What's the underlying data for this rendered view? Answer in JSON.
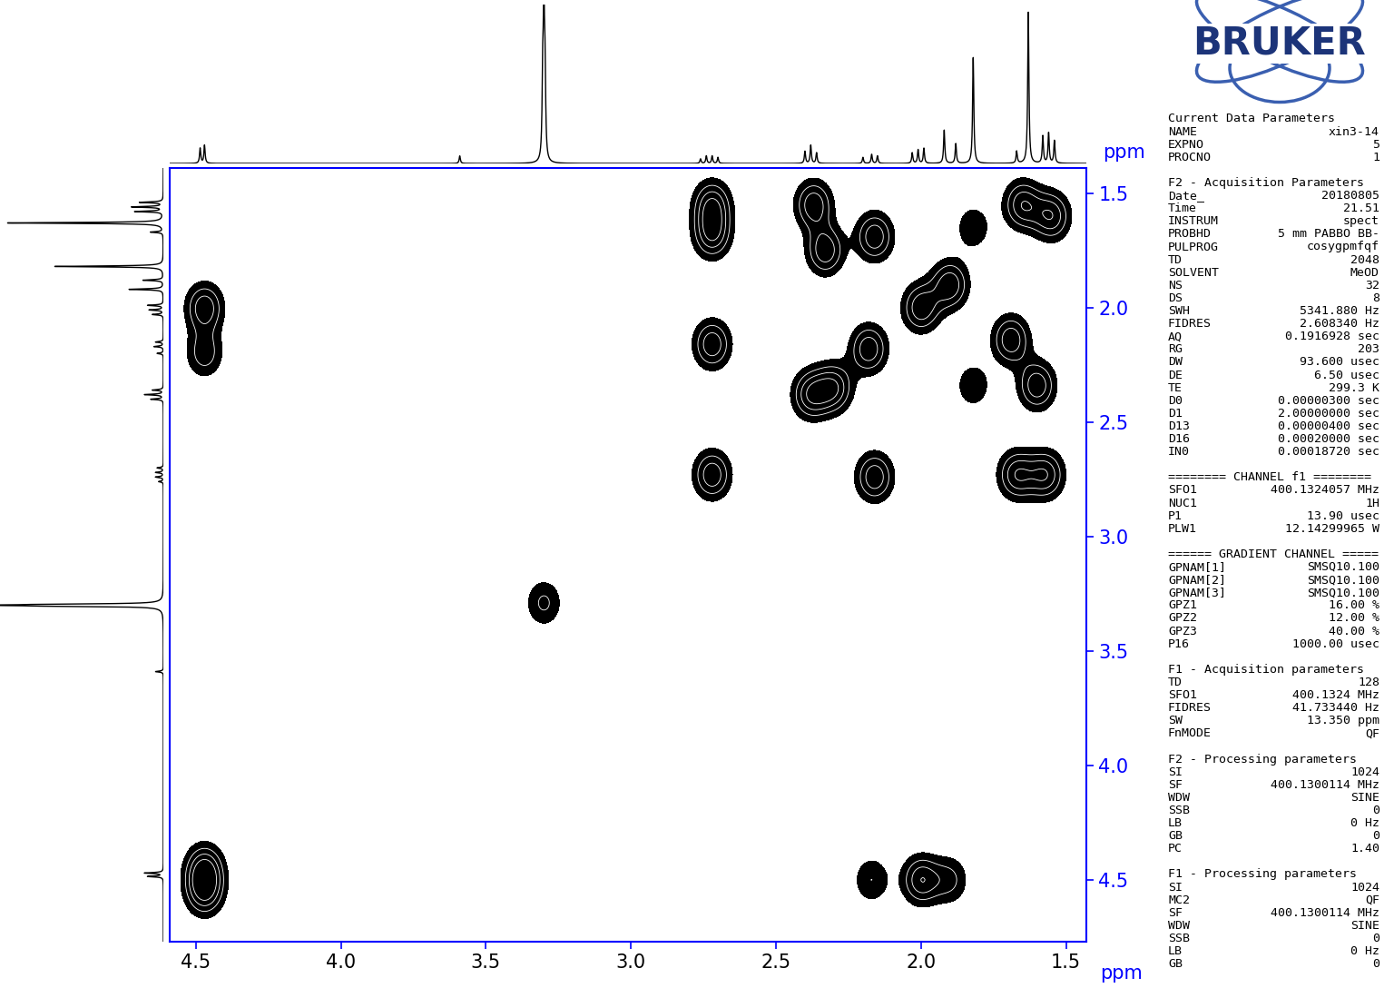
{
  "chart_data": {
    "type": "contour",
    "x_label": "ppm",
    "y_label": "ppm",
    "projection_label": "ppm",
    "xlim": [
      4.59,
      1.43
    ],
    "ylim": [
      4.77,
      1.39
    ],
    "xticks": [
      4.5,
      4.0,
      3.5,
      3.0,
      2.5,
      2.0,
      1.5
    ],
    "yticks": [
      1.5,
      2.0,
      2.5,
      3.0,
      3.5,
      4.0,
      4.5
    ],
    "color": "#000000",
    "axis_color": "#0000ff",
    "cross_peaks": {
      "x": [
        4.47,
        4.47,
        4.47,
        4.47,
        2.72,
        2.72,
        2.72,
        2.72,
        2.37,
        2.33,
        2.38,
        2.3,
        2.16,
        2.18,
        2.16,
        2.0,
        1.9,
        1.82,
        1.82,
        1.65,
        1.55,
        1.69,
        1.6,
        1.67,
        1.57,
        2.0,
        2.17,
        1.9,
        3.3
      ],
      "y": [
        2.0,
        2.2,
        4.45,
        4.55,
        1.55,
        1.68,
        2.16,
        2.73,
        1.55,
        1.75,
        2.38,
        2.35,
        1.69,
        2.18,
        2.74,
        2.0,
        1.9,
        1.65,
        2.34,
        1.55,
        1.6,
        2.14,
        2.34,
        2.73,
        2.73,
        4.5,
        4.5,
        4.5,
        3.29
      ],
      "intensity": [
        1.0,
        0.7,
        1.0,
        1.0,
        1.0,
        1.0,
        1.0,
        1.0,
        1.0,
        1.0,
        1.0,
        1.0,
        1.0,
        1.0,
        1.0,
        1.0,
        1.0,
        0.5,
        0.5,
        1.0,
        1.0,
        1.0,
        1.0,
        1.0,
        1.0,
        1.0,
        0.55,
        0.6,
        0.6
      ]
    },
    "projection": {
      "ppm": [
        4.485,
        4.47,
        3.59,
        3.304,
        3.3,
        3.296,
        2.76,
        2.74,
        2.72,
        2.7,
        2.4,
        2.38,
        2.36,
        2.2,
        2.17,
        2.15,
        2.03,
        2.01,
        1.99,
        1.92,
        1.88,
        1.82,
        1.67,
        1.63,
        1.58,
        1.56,
        1.54
      ],
      "intensity": [
        0.1,
        0.12,
        0.05,
        0.5,
        0.94,
        0.5,
        0.03,
        0.05,
        0.05,
        0.04,
        0.08,
        0.12,
        0.07,
        0.04,
        0.06,
        0.05,
        0.07,
        0.09,
        0.1,
        0.22,
        0.13,
        0.7,
        0.08,
        1.0,
        0.18,
        0.2,
        0.15
      ],
      "intensity_lim": [
        0,
        1.05
      ]
    }
  },
  "logo": {
    "text": "BRUKER"
  },
  "parameters": [
    {
      "title": "Current Data Parameters",
      "rows": [
        [
          "NAME",
          "xin3-14"
        ],
        [
          "EXPNO",
          "5"
        ],
        [
          "PROCNO",
          "1"
        ]
      ]
    },
    {
      "title": "F2 - Acquisition Parameters",
      "rows": [
        [
          "Date_",
          "20180805"
        ],
        [
          "Time",
          "21.51"
        ],
        [
          "INSTRUM",
          "spect"
        ],
        [
          "PROBHD",
          "5 mm PABBO BB-"
        ],
        [
          "PULPROG",
          "cosygpmfqf"
        ],
        [
          "TD",
          "2048"
        ],
        [
          "SOLVENT",
          "MeOD"
        ],
        [
          "NS",
          "32"
        ],
        [
          "DS",
          "8"
        ],
        [
          "SWH",
          "5341.880 Hz"
        ],
        [
          "FIDRES",
          "2.608340 Hz"
        ],
        [
          "AQ",
          "0.1916928 sec"
        ],
        [
          "RG",
          "203"
        ],
        [
          "DW",
          "93.600 usec"
        ],
        [
          "DE",
          "6.50 usec"
        ],
        [
          "TE",
          "299.3 K"
        ],
        [
          "D0",
          "0.00000300 sec"
        ],
        [
          "D1",
          "2.00000000 sec"
        ],
        [
          "D13",
          "0.00000400 sec"
        ],
        [
          "D16",
          "0.00020000 sec"
        ],
        [
          "IN0",
          "0.00018720 sec"
        ]
      ]
    },
    {
      "title": "======== CHANNEL f1 ========",
      "rows": [
        [
          "SFO1",
          "400.1324057 MHz"
        ],
        [
          "NUC1",
          "1H"
        ],
        [
          "P1",
          "13.90 usec"
        ],
        [
          "PLW1",
          "12.14299965 W"
        ]
      ]
    },
    {
      "title": "====== GRADIENT CHANNEL =====",
      "rows": [
        [
          "GPNAM[1]",
          "SMSQ10.100"
        ],
        [
          "GPNAM[2]",
          "SMSQ10.100"
        ],
        [
          "GPNAM[3]",
          "SMSQ10.100"
        ],
        [
          "GPZ1",
          "16.00 %"
        ],
        [
          "GPZ2",
          "12.00 %"
        ],
        [
          "GPZ3",
          "40.00 %"
        ],
        [
          "P16",
          "1000.00 usec"
        ]
      ]
    },
    {
      "title": "F1 - Acquisition parameters",
      "rows": [
        [
          "TD",
          "128"
        ],
        [
          "SFO1",
          "400.1324 MHz"
        ],
        [
          "FIDRES",
          "41.733440 Hz"
        ],
        [
          "SW",
          "13.350 ppm"
        ],
        [
          "FnMODE",
          "QF"
        ]
      ]
    },
    {
      "title": "F2 - Processing parameters",
      "rows": [
        [
          "SI",
          "1024"
        ],
        [
          "SF",
          "400.1300114 MHz"
        ],
        [
          "WDW",
          "SINE"
        ],
        [
          "SSB",
          "0"
        ],
        [
          "LB",
          "0 Hz"
        ],
        [
          "GB",
          "0"
        ],
        [
          "PC",
          "1.40"
        ]
      ]
    },
    {
      "title": "F1 - Processing parameters",
      "rows": [
        [
          "SI",
          "1024"
        ],
        [
          "MC2",
          "QF"
        ],
        [
          "SF",
          "400.1300114 MHz"
        ],
        [
          "WDW",
          "SINE"
        ],
        [
          "SSB",
          "0"
        ],
        [
          "LB",
          "0 Hz"
        ],
        [
          "GB",
          "0"
        ]
      ]
    }
  ]
}
